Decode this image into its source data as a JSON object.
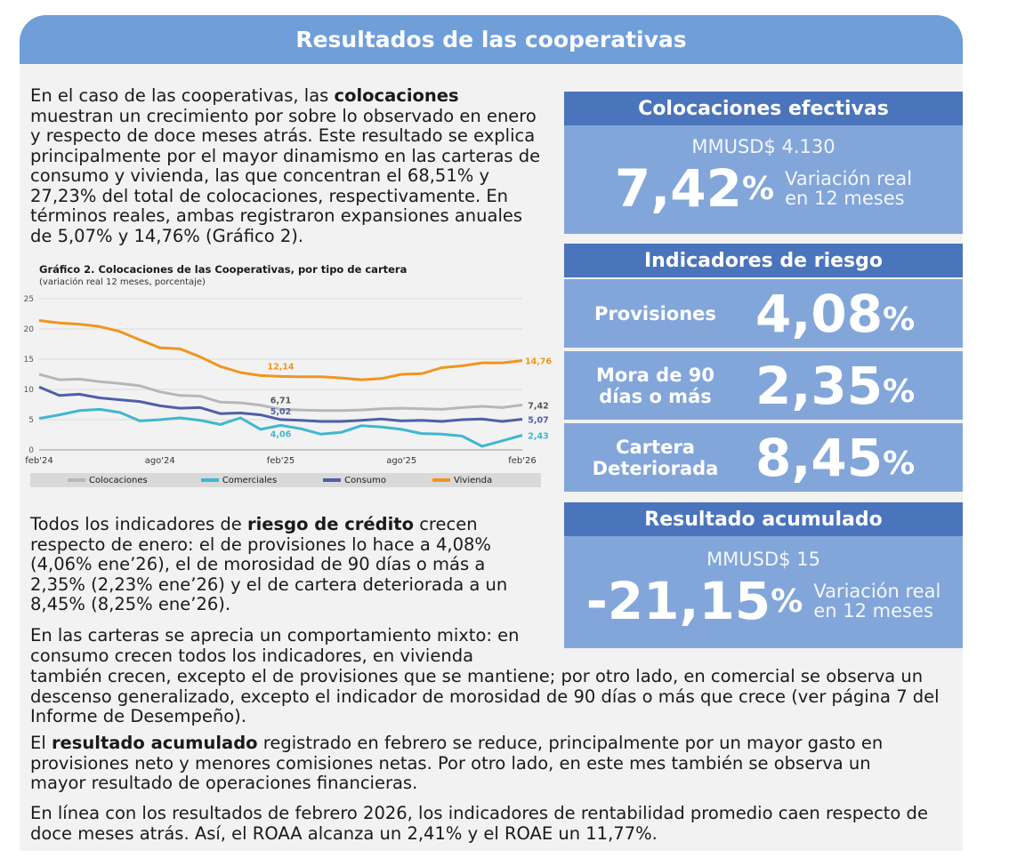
{
  "header": {
    "title": "Resultados de las cooperativas"
  },
  "para1": {
    "pre": "En el caso de las cooperativas, las ",
    "bold": "colocaciones",
    "post": " muestran un crecimiento por sobre lo observado en enero y respecto de doce meses atrás. Este resultado se explica principalmente por el mayor dinamismo en las carteras de consumo y vivienda, las que concentran el 68,51% y 27,23% del total de colocaciones, respectivamente. En términos reales, ambas registraron expansiones anuales de 5,07% y 14,76% (Gráfico 2)."
  },
  "chart": {
    "title": "Gráfico 2. Colocaciones de las Cooperativas, por tipo de cartera",
    "subtitle": "(variación real 12 meses, porcentaje)"
  },
  "chart_data": {
    "type": "line",
    "ylim": [
      0,
      25
    ],
    "yticks": [
      "0",
      "5",
      "10",
      "15",
      "20",
      "25"
    ],
    "xtick_labels": [
      "feb'24",
      "ago'24",
      "feb'25",
      "ago'25",
      "feb'26"
    ],
    "grid": true,
    "legend_position": "bottom",
    "series": [
      {
        "name": "Colocaciones",
        "color": "#b7b7b7",
        "values": [
          12.5,
          11.6,
          11.7,
          11.3,
          11.0,
          10.6,
          9.6,
          9.0,
          8.9,
          7.9,
          7.8,
          7.4,
          6.71,
          6.6,
          6.5,
          6.5,
          6.6,
          6.8,
          6.9,
          6.8,
          6.7,
          7.0,
          7.2,
          7.0,
          7.42
        ]
      },
      {
        "name": "Comerciales",
        "color": "#3fb7d0",
        "values": [
          5.2,
          5.8,
          6.5,
          6.7,
          6.2,
          4.8,
          5.0,
          5.3,
          4.9,
          4.2,
          5.3,
          3.4,
          4.06,
          3.5,
          2.6,
          2.9,
          4.0,
          3.8,
          3.4,
          2.7,
          2.6,
          2.3,
          0.6,
          1.5,
          2.43
        ]
      },
      {
        "name": "Consumo",
        "color": "#4f5fa8",
        "values": [
          10.4,
          9.0,
          9.2,
          8.6,
          8.3,
          8.0,
          7.3,
          6.9,
          7.0,
          6.0,
          6.1,
          5.8,
          5.02,
          4.9,
          4.7,
          4.7,
          4.9,
          5.1,
          4.8,
          4.9,
          4.7,
          5.0,
          5.1,
          4.7,
          5.07
        ]
      },
      {
        "name": "Vivienda",
        "color": "#f0951f",
        "values": [
          21.4,
          21.0,
          20.8,
          20.4,
          19.6,
          18.2,
          16.9,
          16.7,
          15.4,
          13.8,
          12.8,
          12.3,
          12.14,
          12.1,
          12.1,
          11.9,
          11.6,
          11.8,
          12.5,
          12.6,
          13.6,
          13.9,
          14.4,
          14.4,
          14.76
        ]
      }
    ],
    "annotations": [
      {
        "series": "Vivienda",
        "text": "12,14"
      },
      {
        "series": "Colocaciones",
        "text": "6,71"
      },
      {
        "series": "Consumo",
        "text": "5,02"
      },
      {
        "series": "Comerciales",
        "text": "4,06"
      },
      {
        "series": "Vivienda",
        "text": "14,76"
      },
      {
        "series": "Colocaciones",
        "text": "7,42"
      },
      {
        "series": "Consumo",
        "text": "5,07"
      },
      {
        "series": "Comerciales",
        "text": "2,43"
      }
    ]
  },
  "para2": {
    "pre": "Todos los indicadores de ",
    "bold": "riesgo de crédito",
    "post": " crecen respecto de enero: el de provisiones lo hace a 4,08% (4,06% ene’26), el de morosidad de 90 días o más a 2,35% (2,23% ene’26) y el de cartera deteriorada a un 8,45% (8,25% ene’26)."
  },
  "para3": {
    "a": "En las carteras se aprecia un comportamiento mixto: en consumo crecen todos los indicadores, en vivienda",
    "b": "también crecen, excepto el de provisiones que se mantiene; por otro lado, en comercial se observa un descenso generalizado, excepto el indicador de morosidad de 90 días o más que crece (ver página 7 del Informe de Desempeño)."
  },
  "para4": {
    "pre": "El ",
    "bold": "resultado acumulado",
    "post": " registrado en febrero se reduce, principalmente por un mayor gasto en provisiones neto y menores comisiones netas. Por otro lado, en este mes también se observa un mayor resultado de operaciones financieras."
  },
  "para5": "En línea con los resultados de febrero 2026, los indicadores de rentabilidad promedio caen respecto de doce meses atrás. Así, el ROAA alcanza un 2,41% y el ROAE un 11,77%.",
  "card_colocaciones": {
    "title": "Colocaciones efectivas",
    "amount": "MMUSD$ 4.130",
    "value": "7,42",
    "pct": "%",
    "var1": "Variación real",
    "var2": "en 12 meses"
  },
  "card_riesgo": {
    "title": "Indicadores de riesgo",
    "rows": [
      {
        "l1": "Provisiones",
        "l2": "",
        "value": "4,08",
        "pct": "%"
      },
      {
        "l1": "Mora de 90",
        "l2": "días o más",
        "value": "2,35",
        "pct": "%"
      },
      {
        "l1": "Cartera",
        "l2": "Deteriorada",
        "value": "8,45",
        "pct": "%"
      }
    ]
  },
  "card_resultado": {
    "title": "Resultado acumulado",
    "amount": "MMUSD$ 15",
    "value": "-21,15",
    "pct": "%",
    "var1": "Variación real",
    "var2": "en 12 meses"
  }
}
